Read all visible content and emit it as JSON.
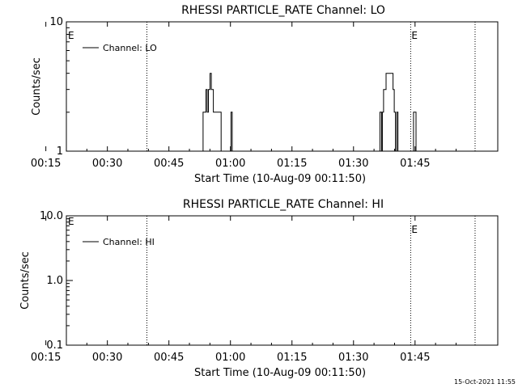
{
  "chart_data": [
    {
      "type": "line",
      "title": "RHESSI PARTICLE_RATE Channel: LO",
      "xlabel": "Start Time (10-Aug-09 00:11:50)",
      "ylabel": "Counts/sec",
      "yscale": "log",
      "ylim": [
        1,
        10
      ],
      "xlim_minutes": [
        8.17,
        113.33
      ],
      "x_ticks": [
        "00:15",
        "00:30",
        "00:45",
        "01:00",
        "01:15",
        "01:30",
        "01:45"
      ],
      "y_ticks": [
        "1",
        "10"
      ],
      "legend": {
        "label": "Channel: LO",
        "position": "top-left"
      },
      "event_markers": [
        {
          "minutes": 27.8,
          "label": ""
        },
        {
          "minutes": 92.1,
          "label": "E"
        },
        {
          "minutes": 107.8,
          "label": ""
        }
      ],
      "left_marker_label": "E",
      "series": [
        {
          "name": "Channel: LO",
          "points": [
            [
              41.5,
              1
            ],
            [
              41.5,
              2
            ],
            [
              42.2,
              2
            ],
            [
              42.2,
              3
            ],
            [
              42.5,
              3
            ],
            [
              42.5,
              2
            ],
            [
              42.8,
              2
            ],
            [
              42.8,
              3
            ],
            [
              43.2,
              3
            ],
            [
              43.2,
              4
            ],
            [
              43.5,
              4
            ],
            [
              43.5,
              3
            ],
            [
              44.0,
              3
            ],
            [
              44.0,
              2
            ],
            [
              45.9,
              2
            ],
            [
              45.9,
              1
            ],
            [
              46.6,
              1
            ],
            [
              48.3,
              1
            ],
            [
              48.3,
              2
            ],
            [
              48.6,
              2
            ],
            [
              48.6,
              1
            ],
            [
              49.0,
              1
            ],
            [
              84.6,
              1
            ],
            [
              84.6,
              2
            ],
            [
              85.0,
              2
            ],
            [
              85.0,
              1
            ],
            [
              85.2,
              1
            ],
            [
              85.2,
              2
            ],
            [
              85.5,
              2
            ],
            [
              85.5,
              3
            ],
            [
              86.1,
              3
            ],
            [
              86.1,
              4
            ],
            [
              87.8,
              4
            ],
            [
              87.8,
              3
            ],
            [
              88.1,
              3
            ],
            [
              88.1,
              2
            ],
            [
              88.4,
              2
            ],
            [
              88.4,
              1
            ],
            [
              88.7,
              1
            ],
            [
              88.7,
              2
            ],
            [
              89.0,
              2
            ],
            [
              89.0,
              1
            ],
            [
              89.4,
              1
            ],
            [
              92.8,
              1
            ],
            [
              92.8,
              2
            ],
            [
              93.4,
              2
            ],
            [
              93.4,
              1
            ],
            [
              94.0,
              1
            ]
          ]
        }
      ]
    },
    {
      "type": "line",
      "title": "RHESSI PARTICLE_RATE Channel: HI",
      "xlabel": "Start Time (10-Aug-09 00:11:50)",
      "ylabel": "Counts/sec",
      "yscale": "log",
      "ylim": [
        0.1,
        10
      ],
      "xlim_minutes": [
        8.17,
        113.33
      ],
      "x_ticks": [
        "00:15",
        "00:30",
        "00:45",
        "01:00",
        "01:15",
        "01:30",
        "01:45"
      ],
      "y_ticks": [
        "0.1",
        "1.0",
        "10.0"
      ],
      "legend": {
        "label": "Channel: HI",
        "position": "top-left"
      },
      "event_markers": [
        {
          "minutes": 27.8,
          "label": ""
        },
        {
          "minutes": 92.1,
          "label": "E"
        },
        {
          "minutes": 107.8,
          "label": ""
        }
      ],
      "left_marker_label": "E",
      "series": [
        {
          "name": "Channel: HI",
          "points": []
        }
      ]
    }
  ],
  "footer": {
    "timestamp": "15-Oct-2021 11:55"
  }
}
